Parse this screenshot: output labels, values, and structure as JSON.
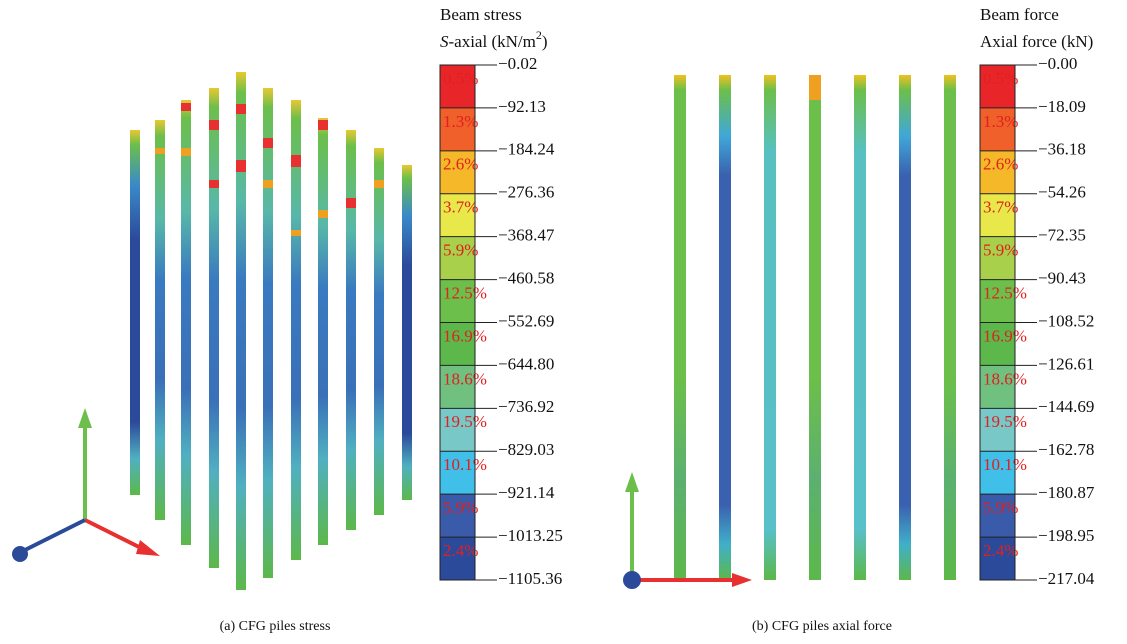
{
  "panels": [
    {
      "legend": {
        "title": "Beam stress",
        "subtitle": {
          "italic": "S",
          "text": "-axial (kN/m",
          "sup": "2",
          "end": ")"
        },
        "levels": [
          "−0.02",
          "−92.13",
          "−184.24",
          "−276.36",
          "−368.47",
          "−460.58",
          "−552.69",
          "−644.80",
          "−736.92",
          "−829.03",
          "−921.14",
          "−1013.25",
          "−1105.36"
        ],
        "percents": [
          "0.5%",
          "1.3%",
          "2.6%",
          "3.7%",
          "5.9%",
          "12.5%",
          "16.9%",
          "18.6%",
          "19.5%",
          "10.1%",
          "5.9%",
          "2.4%"
        ]
      },
      "caption": "(a)  CFG piles stress"
    },
    {
      "legend": {
        "title": "Beam force",
        "subtitle": {
          "text": "Axial force (kN)"
        },
        "levels": [
          "−0.00",
          "−18.09",
          "−36.18",
          "−54.26",
          "−72.35",
          "−90.43",
          "−108.52",
          "−126.61",
          "−144.69",
          "−162.78",
          "−180.87",
          "−198.95",
          "−217.04"
        ],
        "percents": [
          "0.5%",
          "1.3%",
          "2.6%",
          "3.7%",
          "5.9%",
          "12.5%",
          "16.9%",
          "18.6%",
          "19.5%",
          "10.1%",
          "5.9%",
          "2.4%"
        ]
      },
      "caption": "(b)  CFG piles axial force"
    }
  ]
}
